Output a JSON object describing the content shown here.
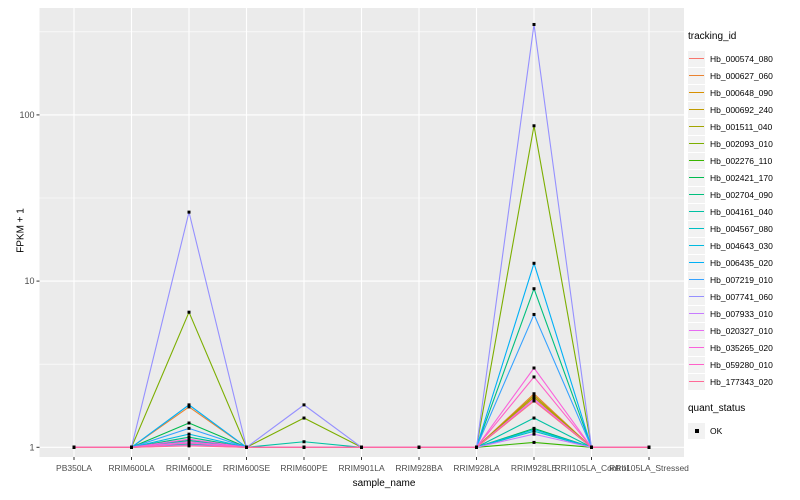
{
  "colors": {
    "panel_bg": "#EBEBEB",
    "grid": "#FFFFFF",
    "point": "#000000",
    "tick_label": "#4D4D4D",
    "tick_mark": "#333333",
    "legend_key_bg": "#F2F2F2"
  },
  "chart_data": {
    "type": "line",
    "title": "",
    "xlabel": "sample_name",
    "ylabel": "FPKM + 1",
    "y_scale": "log10",
    "y_ticks": [
      1,
      10,
      100
    ],
    "y_tick_labels": [
      "1",
      "10",
      "100"
    ],
    "y_minor_ticks": [
      3.162,
      31.62,
      316.2
    ],
    "ylim": [
      0.88,
      440
    ],
    "grid": "on",
    "legend": {
      "title": "tracking_id",
      "position": "right"
    },
    "quant_legend": {
      "title": "quant_status",
      "items": [
        {
          "label": "OK",
          "shape": "filled-square"
        }
      ]
    },
    "point_shape": "filled-square",
    "point_color": "#000000",
    "categories": [
      "PB350LA",
      "RRIM600LA",
      "RRIM600LE",
      "RRIM600SE",
      "RRIM600PE",
      "RRIM901LA",
      "RRIM928BA",
      "RRIM928LA",
      "RRIM928LE",
      "RRII105LA_Control",
      "RRII105LA_Stressed"
    ],
    "series": [
      {
        "name": "Hb_000574_080",
        "color": "#F8766D",
        "values": [
          1,
          1,
          1.05,
          1,
          1,
          1,
          1,
          1,
          2.0,
          1,
          1
        ]
      },
      {
        "name": "Hb_000627_060",
        "color": "#EA8331",
        "values": [
          1,
          1,
          1.75,
          1,
          1,
          1,
          1,
          1,
          2.1,
          1,
          1
        ]
      },
      {
        "name": "Hb_000648_090",
        "color": "#D89000",
        "values": [
          1,
          1,
          1.03,
          1,
          1,
          1,
          1,
          1,
          1.9,
          1,
          1
        ]
      },
      {
        "name": "Hb_000692_240",
        "color": "#C09B00",
        "values": [
          1,
          1,
          1.1,
          1,
          1,
          1,
          1,
          1,
          2.0,
          1,
          1
        ]
      },
      {
        "name": "Hb_001511_040",
        "color": "#A3A500",
        "values": [
          1,
          1,
          1.05,
          1,
          1,
          1,
          1,
          1,
          2.05,
          1,
          1
        ]
      },
      {
        "name": "Hb_002093_010",
        "color": "#7CAE00",
        "values": [
          1,
          1,
          6.5,
          1,
          1.5,
          1,
          1,
          1,
          86,
          1,
          1
        ]
      },
      {
        "name": "Hb_002276_110",
        "color": "#39B600",
        "values": [
          1,
          1,
          1.08,
          1,
          1,
          1,
          1,
          1,
          1.07,
          1,
          1
        ]
      },
      {
        "name": "Hb_002421_170",
        "color": "#00BB4E",
        "values": [
          1,
          1,
          1.4,
          1,
          1,
          1,
          1,
          1,
          1.3,
          1,
          1
        ]
      },
      {
        "name": "Hb_002704_090",
        "color": "#00BF7D",
        "values": [
          1,
          1,
          1.15,
          1,
          1,
          1,
          1,
          1,
          9.0,
          1,
          1
        ]
      },
      {
        "name": "Hb_004161_040",
        "color": "#00C1A3",
        "values": [
          1,
          1,
          1.1,
          1,
          1.08,
          1,
          1,
          1,
          1.5,
          1,
          1
        ]
      },
      {
        "name": "Hb_004567_080",
        "color": "#00BFC4",
        "values": [
          1,
          1,
          1.05,
          1,
          1,
          1,
          1,
          1,
          1.25,
          1,
          1
        ]
      },
      {
        "name": "Hb_004643_030",
        "color": "#00BAE0",
        "values": [
          1,
          1,
          1.2,
          1,
          1,
          1,
          1,
          1,
          1.28,
          1,
          1
        ]
      },
      {
        "name": "Hb_006435_020",
        "color": "#00B0F6",
        "values": [
          1,
          1,
          1.8,
          1,
          1,
          1,
          1,
          1,
          12.8,
          1,
          1
        ]
      },
      {
        "name": "Hb_007219_010",
        "color": "#35A2FF",
        "values": [
          1,
          1,
          1.3,
          1,
          1,
          1,
          1,
          1,
          6.3,
          1,
          1
        ]
      },
      {
        "name": "Hb_007741_060",
        "color": "#9590FF",
        "values": [
          1,
          1,
          26,
          1,
          1.8,
          1,
          1,
          1,
          350,
          1,
          1
        ]
      },
      {
        "name": "Hb_007933_010",
        "color": "#C77CFF",
        "values": [
          1,
          1,
          1.03,
          1,
          1,
          1,
          1,
          1,
          1.2,
          1,
          1
        ]
      },
      {
        "name": "Hb_020327_010",
        "color": "#E76BF3",
        "values": [
          1,
          1,
          1.08,
          1,
          1,
          1,
          1,
          1,
          1.95,
          1,
          1
        ]
      },
      {
        "name": "Hb_035265_020",
        "color": "#FA62DB",
        "values": [
          1,
          1,
          1.12,
          1,
          1,
          1,
          1,
          1,
          3.0,
          1,
          1
        ]
      },
      {
        "name": "Hb_059280_010",
        "color": "#FF61C9",
        "values": [
          1,
          1,
          1.06,
          1,
          1,
          1,
          1,
          1,
          2.65,
          1,
          1
        ]
      },
      {
        "name": "Hb_177343_020",
        "color": "#FF6A98",
        "values": [
          1,
          1,
          1.02,
          1,
          1,
          1,
          1,
          1,
          1.9,
          1,
          1
        ]
      }
    ]
  }
}
